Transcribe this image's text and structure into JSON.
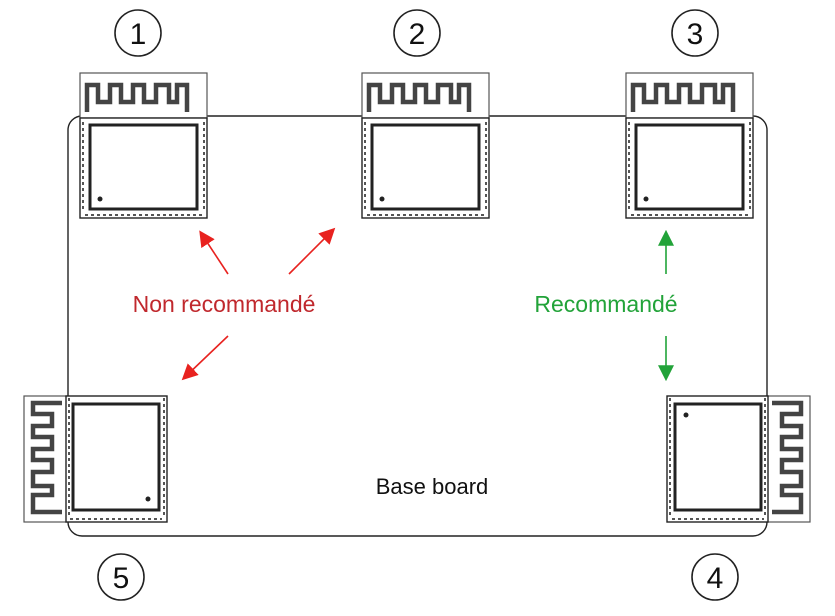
{
  "labels": {
    "not_recommended": "Non recommandé",
    "recommended": "Recommandé",
    "base_board": "Base board"
  },
  "positions": [
    "1",
    "2",
    "3",
    "4",
    "5"
  ],
  "colors": {
    "not_recommended": "#c0282d",
    "not_recommended_arrow": "#e8221f",
    "recommended": "#22a339",
    "outline": "#222222"
  }
}
